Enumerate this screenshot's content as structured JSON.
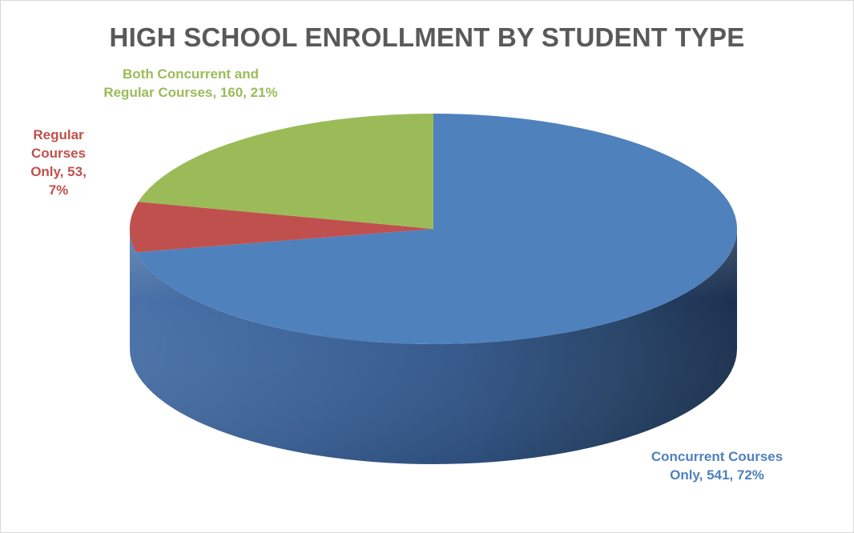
{
  "chart_data": {
    "type": "pie",
    "title": "HIGH SCHOOL ENROLLMENT BY STUDENT TYPE",
    "style": "3d",
    "slices": [
      {
        "name": "Concurrent Courses Only",
        "value": 541,
        "percent": "72%",
        "color": "#4f81bd",
        "label_lines": [
          "Concurrent Courses",
          "Only, 541, 72%"
        ]
      },
      {
        "name": "Regular Courses Only",
        "value": 53,
        "percent": "7%",
        "color": "#c0504d",
        "label_lines": [
          "Regular",
          "Courses",
          "Only, 53,",
          "7%"
        ]
      },
      {
        "name": "Both Concurrent and Regular Courses",
        "value": 160,
        "percent": "21%",
        "color": "#9bbb59",
        "label_lines": [
          "Both Concurrent and",
          "Regular Courses, 160, 21%"
        ]
      }
    ]
  }
}
